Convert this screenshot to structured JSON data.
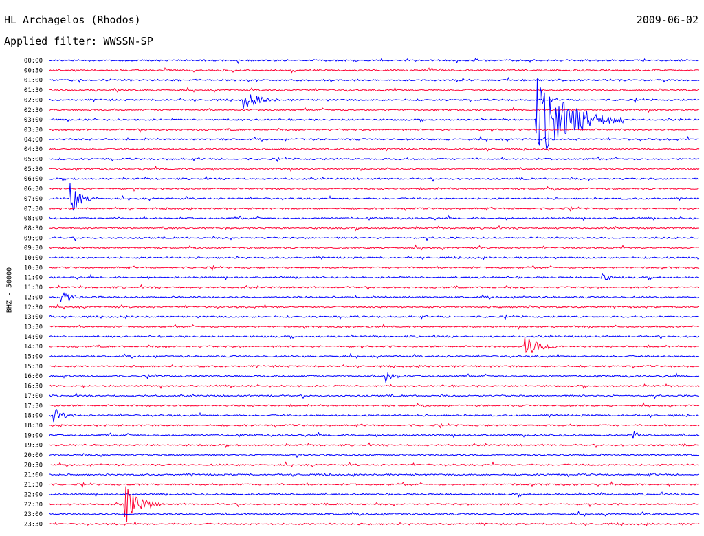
{
  "header": {
    "station": "HL Archagelos (Rhodos)",
    "date": "2009-06-02",
    "filter": "Applied filter: WWSSN-SP"
  },
  "chart_data": {
    "type": "line",
    "title": "HL Archagelos (Rhodos)",
    "subtitle": "Applied filter: WWSSN-SP",
    "ylabel": "BHZ - 50000",
    "xlabel": "",
    "grid": false,
    "tick_labels": [
      "00:00",
      "00:30",
      "01:00",
      "01:30",
      "02:00",
      "02:30",
      "03:00",
      "03:30",
      "04:00",
      "04:30",
      "05:00",
      "05:30",
      "06:00",
      "06:30",
      "07:00",
      "07:30",
      "08:00",
      "08:30",
      "09:00",
      "09:30",
      "10:00",
      "10:30",
      "11:00",
      "11:30",
      "12:00",
      "12:30",
      "13:00",
      "13:30",
      "14:00",
      "14:30",
      "15:00",
      "15:30",
      "16:00",
      "16:30",
      "17:00",
      "17:30",
      "18:00",
      "18:30",
      "19:00",
      "19:30",
      "20:00",
      "20:30",
      "21:00",
      "21:30",
      "22:00",
      "22:30",
      "23:00",
      "23:30"
    ],
    "series_colors": [
      "#0000ff",
      "#ff0033"
    ],
    "trace_minutes": 30,
    "events": [
      {
        "row": 4,
        "minute": 9,
        "amplitude": 12,
        "duration": 1.6
      },
      {
        "row": 6,
        "minute": 22.5,
        "amplitude": 60,
        "duration": 4
      },
      {
        "row": 14,
        "minute": 1,
        "amplitude": 22,
        "duration": 1.2
      },
      {
        "row": 24,
        "minute": 0.5,
        "amplitude": 8,
        "duration": 1.2
      },
      {
        "row": 29,
        "minute": 22,
        "amplitude": 14,
        "duration": 1.8
      },
      {
        "row": 32,
        "minute": 15.5,
        "amplitude": 9,
        "duration": 1
      },
      {
        "row": 36,
        "minute": 0.2,
        "amplitude": 10,
        "duration": 1
      },
      {
        "row": 45,
        "minute": 3.5,
        "amplitude": 30,
        "duration": 1.6
      },
      {
        "row": 22,
        "minute": 25.5,
        "amplitude": 8,
        "duration": 0.6
      },
      {
        "row": 38,
        "minute": 27,
        "amplitude": 6,
        "duration": 0.5
      }
    ]
  }
}
